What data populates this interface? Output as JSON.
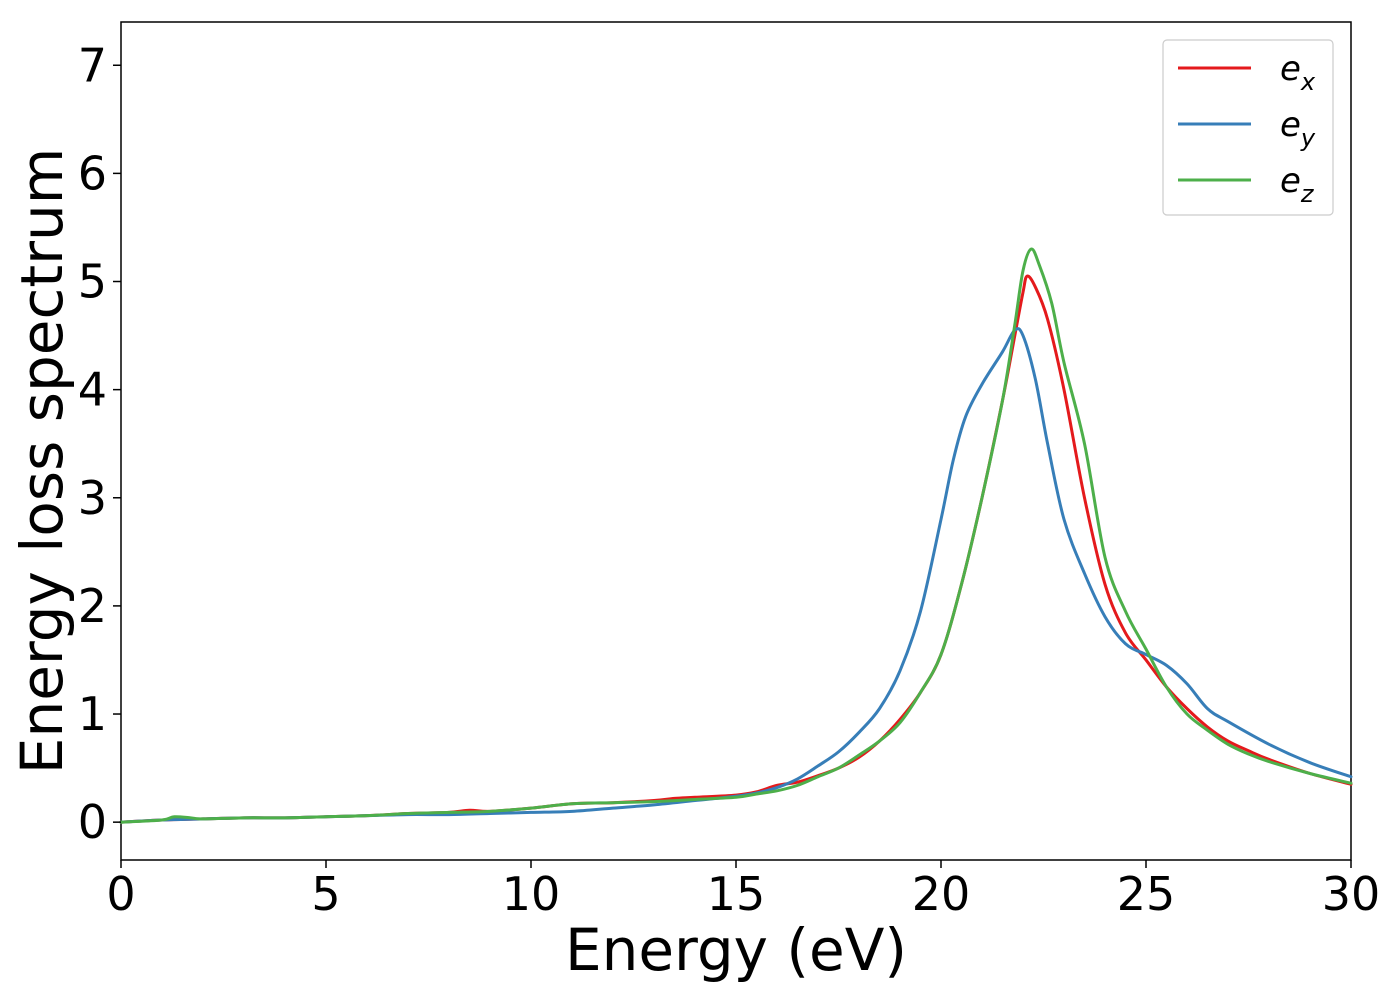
{
  "chart_data": {
    "type": "line",
    "xlabel": "Energy (eV)",
    "ylabel": "Energy loss spectrum",
    "xlim": [
      0,
      30
    ],
    "ylim": [
      -0.35,
      7.4
    ],
    "xticks": [
      0,
      5,
      10,
      15,
      20,
      25,
      30
    ],
    "yticks": [
      0,
      1,
      2,
      3,
      4,
      5,
      6,
      7
    ],
    "grid": false,
    "legend_position": "top-right",
    "series": [
      {
        "name": "e",
        "subscript": "x",
        "color": "#e41a1c",
        "x": [
          0,
          1,
          2,
          3,
          4,
          5,
          6,
          7,
          8,
          8.5,
          9,
          10,
          11,
          12,
          13,
          13.5,
          14,
          15,
          15.5,
          16,
          16.5,
          17,
          17.5,
          18,
          18.5,
          19,
          19.5,
          20,
          20.5,
          21,
          21.5,
          21.8,
          22.0,
          22.1,
          22.3,
          22.6,
          23.0,
          23.5,
          24.0,
          24.5,
          25.0,
          25.5,
          26.0,
          26.5,
          27.0,
          27.5,
          28.0,
          29.0,
          30.0
        ],
        "y": [
          0,
          0.02,
          0.03,
          0.04,
          0.04,
          0.05,
          0.06,
          0.08,
          0.09,
          0.11,
          0.1,
          0.13,
          0.17,
          0.18,
          0.2,
          0.22,
          0.23,
          0.25,
          0.28,
          0.34,
          0.37,
          0.43,
          0.5,
          0.6,
          0.75,
          0.95,
          1.2,
          1.55,
          2.2,
          3.0,
          3.9,
          4.5,
          4.9,
          5.05,
          4.95,
          4.65,
          4.0,
          3.0,
          2.2,
          1.75,
          1.5,
          1.25,
          1.05,
          0.88,
          0.75,
          0.66,
          0.58,
          0.45,
          0.35
        ]
      },
      {
        "name": "e",
        "subscript": "y",
        "color": "#377eb8",
        "x": [
          0,
          1,
          2,
          3,
          4,
          5,
          6,
          7,
          8,
          9,
          10,
          11,
          12,
          13,
          14,
          15,
          15.5,
          16,
          16.5,
          17,
          17.5,
          18,
          18.5,
          19,
          19.5,
          20,
          20.3,
          20.6,
          21,
          21.5,
          21.8,
          22.0,
          22.3,
          22.6,
          23.0,
          23.5,
          24.0,
          24.5,
          25.0,
          25.5,
          26.0,
          26.5,
          27.0,
          28.0,
          29.0,
          30.0
        ],
        "y": [
          0,
          0.02,
          0.03,
          0.04,
          0.04,
          0.05,
          0.06,
          0.07,
          0.07,
          0.08,
          0.09,
          0.1,
          0.13,
          0.16,
          0.2,
          0.24,
          0.27,
          0.32,
          0.4,
          0.52,
          0.65,
          0.83,
          1.05,
          1.4,
          1.95,
          2.8,
          3.35,
          3.75,
          4.05,
          4.35,
          4.55,
          4.5,
          4.1,
          3.5,
          2.8,
          2.3,
          1.9,
          1.65,
          1.55,
          1.45,
          1.28,
          1.05,
          0.93,
          0.72,
          0.55,
          0.42
        ]
      },
      {
        "name": "e",
        "subscript": "z",
        "color": "#4daf4a",
        "x": [
          0,
          1,
          1.3,
          1.7,
          2,
          3,
          4,
          5,
          6,
          7,
          8,
          9,
          10,
          11,
          12,
          13,
          14,
          15,
          15.5,
          16,
          16.5,
          17,
          17.5,
          18,
          18.5,
          19,
          19.5,
          20,
          20.5,
          21,
          21.5,
          21.8,
          22.0,
          22.2,
          22.4,
          22.7,
          23.0,
          23.5,
          24.0,
          24.5,
          25.0,
          25.5,
          26.0,
          26.5,
          27.0,
          27.5,
          28.0,
          29.0,
          30.0
        ],
        "y": [
          0,
          0.02,
          0.05,
          0.04,
          0.03,
          0.04,
          0.04,
          0.05,
          0.06,
          0.08,
          0.09,
          0.1,
          0.13,
          0.17,
          0.18,
          0.19,
          0.21,
          0.23,
          0.26,
          0.29,
          0.34,
          0.42,
          0.5,
          0.62,
          0.75,
          0.92,
          1.2,
          1.55,
          2.2,
          3.0,
          3.9,
          4.6,
          5.1,
          5.3,
          5.15,
          4.8,
          4.25,
          3.5,
          2.45,
          1.95,
          1.6,
          1.25,
          1.0,
          0.85,
          0.72,
          0.63,
          0.56,
          0.45,
          0.36
        ]
      }
    ]
  }
}
